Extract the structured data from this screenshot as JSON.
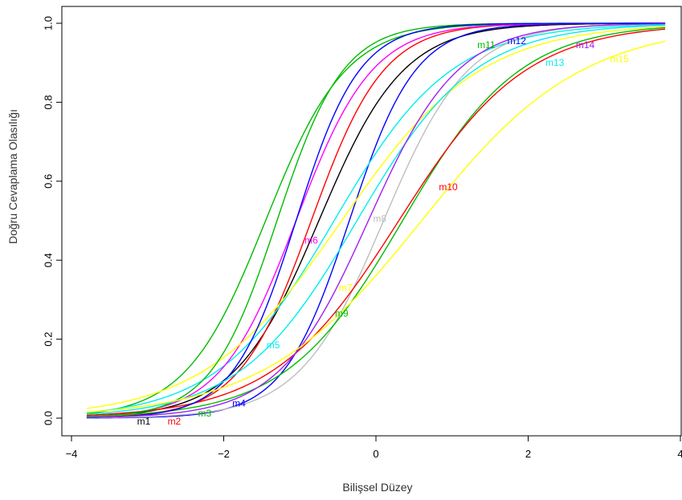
{
  "chart_data": {
    "type": "line",
    "title": "",
    "xlabel": "Bilişsel Düzey",
    "ylabel": "Doğru Cevaplama Olasılığı",
    "xlim": [
      -4,
      4
    ],
    "ylim": [
      0,
      1
    ],
    "x_range": [
      -3.8,
      3.8
    ],
    "x_ticks": [
      -4,
      -2,
      0,
      2,
      4
    ],
    "x_tick_labels": [
      "-4",
      "-2",
      "0",
      "2",
      "4"
    ],
    "y_ticks": [
      0,
      0.2,
      0.4,
      0.6,
      0.8,
      1.0
    ],
    "y_tick_labels": [
      "0.0",
      "0.2",
      "0.4",
      "0.6",
      "0.8",
      "1.0"
    ],
    "grid": false,
    "legend": "none",
    "series": [
      {
        "name": "m1",
        "color": "#000000",
        "a": 1.8,
        "b": -0.75,
        "label_x": -3.05,
        "label_y": -0.008
      },
      {
        "name": "m2",
        "color": "#ff0000",
        "a": 2.1,
        "b": -0.85,
        "label_x": -2.65,
        "label_y": -0.008
      },
      {
        "name": "m3",
        "color": "#00bb00",
        "a": 1.9,
        "b": -1.45,
        "label_x": -2.25,
        "label_y": 0.012
      },
      {
        "name": "m4",
        "color": "#0000ff",
        "a": 2.3,
        "b": -0.35,
        "label_x": -1.8,
        "label_y": 0.038
      },
      {
        "name": "m5",
        "color": "#00eeee",
        "a": 1.3,
        "b": -0.55,
        "label_x": -1.35,
        "label_y": 0.185
      },
      {
        "name": "m6",
        "color": "#ff00ff",
        "a": 2.0,
        "b": -1.05,
        "label_x": -0.85,
        "label_y": 0.45
      },
      {
        "name": "m7",
        "color": "#ffff00",
        "a": 1.1,
        "b": -0.45,
        "label_x": -0.4,
        "label_y": 0.33
      },
      {
        "name": "m8",
        "color": "#bebebe",
        "a": 1.8,
        "b": 0.1,
        "label_x": 0.05,
        "label_y": 0.505
      },
      {
        "name": "m9",
        "color": "#00bb00",
        "a": 1.3,
        "b": 0.35,
        "label_x": -0.45,
        "label_y": 0.265
      },
      {
        "name": "m10",
        "color": "#ff0000",
        "a": 1.2,
        "b": 0.3,
        "label_x": 0.95,
        "label_y": 0.585
      },
      {
        "name": "m11",
        "color": "#00bb00",
        "a": 2.3,
        "b": -1.3,
        "label_x": 1.45,
        "label_y": 0.945
      },
      {
        "name": "m12",
        "color": "#0000ff",
        "a": 2.4,
        "b": -1.05,
        "label_x": 1.85,
        "label_y": 0.955
      },
      {
        "name": "m13",
        "color": "#00eeee",
        "a": 1.3,
        "b": -0.25,
        "label_x": 2.35,
        "label_y": 0.9
      },
      {
        "name": "m14",
        "color": "#a020f0",
        "a": 1.7,
        "b": -0.1,
        "label_x": 2.75,
        "label_y": 0.945
      },
      {
        "name": "m15",
        "color": "#ffff00",
        "a": 0.95,
        "b": 0.6,
        "label_x": 3.2,
        "label_y": 0.91
      }
    ]
  }
}
